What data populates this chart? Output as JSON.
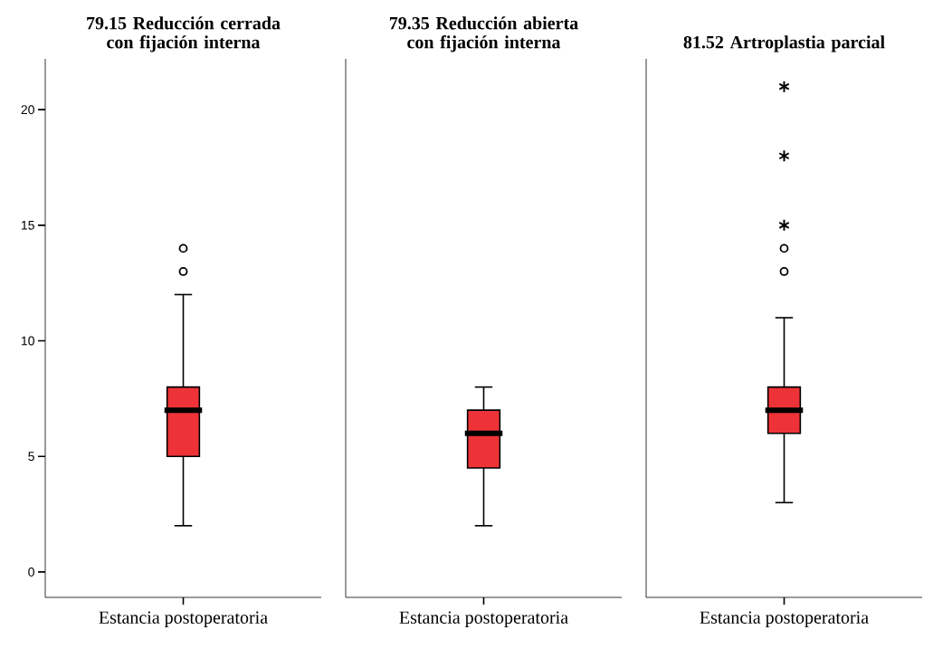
{
  "chart_data": [
    {
      "type": "box",
      "title": "79.15 Reducción cerrada con fijación interna",
      "categories": [
        "Estancia postoperatoria"
      ],
      "ylim": [
        -1.1,
        22.2
      ],
      "yticks": [
        0,
        5,
        10,
        15,
        20
      ],
      "series": [
        {
          "color": "#ee3338",
          "boxes": [
            {
              "low": 2,
              "q1": 5,
              "median": 7,
              "q3": 8,
              "high": 12,
              "outliers": [
                13,
                14
              ]
            }
          ]
        }
      ]
    },
    {
      "type": "box",
      "title": "79.35 Reducción abierta con fijación interna",
      "categories": [
        "Estancia postoperatoria"
      ],
      "ylim": [
        -1.1,
        22.2
      ],
      "tick_labels": "x",
      "series": [
        {
          "color": "#ee3338",
          "boxes": [
            {
              "low": 2,
              "q1": 4.5,
              "median": 6,
              "q3": 7,
              "high": 8
            }
          ]
        }
      ]
    },
    {
      "type": "box",
      "title": "81.52 Artroplastia parcial",
      "categories": [
        "Estancia postoperatoria"
      ],
      "ylim": [
        -1.1,
        22.2
      ],
      "tick_labels": "x",
      "series": [
        {
          "color": "#ee3338",
          "boxes": [
            {
              "low": 3,
              "q1": 6,
              "median": 7,
              "q3": 8,
              "high": 11,
              "outliers": [
                13,
                14
              ]
            }
          ]
        },
        {
          "type": "scatter",
          "x": [
            "Estancia postoperatoria",
            "Estancia postoperatoria",
            "Estancia postoperatoria"
          ],
          "values": [
            15,
            18,
            21
          ],
          "marker": "cross",
          "color": "#000000"
        }
      ]
    }
  ]
}
